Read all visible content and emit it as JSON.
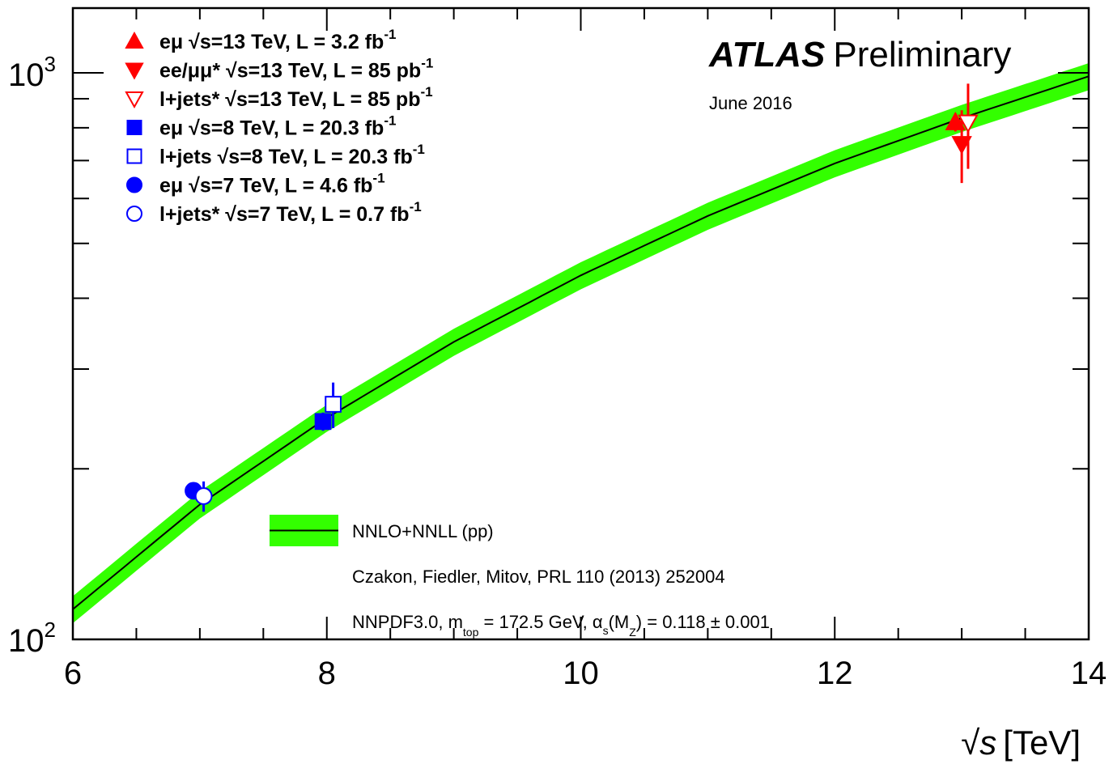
{
  "chart_data": {
    "type": "scatter",
    "title": "ATLAS",
    "subtitle": "Preliminary",
    "date_note": "June 2016",
    "xlabel_root": "√",
    "xlabel_var": "s",
    "xlabel_unit": "[TeV]",
    "ylabel": "",
    "x_range": [
      6,
      14
    ],
    "y_range": [
      100,
      1250
    ],
    "y_scale": "log",
    "x_ticks": [
      {
        "value": 6,
        "label": "6"
      },
      {
        "value": 8,
        "label": "8"
      },
      {
        "value": 10,
        "label": "10"
      },
      {
        "value": 12,
        "label": "12"
      },
      {
        "value": 14,
        "label": "14"
      }
    ],
    "y_ticks": [
      {
        "value": 100,
        "base": "10",
        "exp": "2"
      },
      {
        "value": 1000,
        "base": "10",
        "exp": "3"
      }
    ],
    "theory": {
      "name": "NNLO+NNLL (pp)",
      "reference": "Czakon, Fiedler, Mitov, PRL 110 (2013) 252004",
      "pdf_text": "NNPDF3.0, m",
      "pdf_sub": "top",
      "pdf_mid": " = 172.5 GeV, α",
      "pdf_sub2": "s",
      "pdf_mid2": "(M",
      "pdf_sub3": "Z",
      "pdf_end": ") = 0.118 ± 0.001",
      "color": "#33ff00",
      "x": [
        6,
        7,
        8,
        9,
        10,
        11,
        12,
        13,
        14
      ],
      "y": [
        113,
        173,
        246,
        335,
        439,
        559,
        692,
        832,
        986
      ],
      "rel_uncertainty": 0.055
    },
    "series": [
      {
        "name": "eμ",
        "energy": "√s=13 TeV, L = 3.2 fb",
        "lumi_exp": "-1",
        "marker": "triangle-up",
        "filled": true,
        "color": "#ff0000",
        "x": 12.95,
        "y": 818,
        "err": 30
      },
      {
        "name": "ee/μμ*",
        "energy": "√s=13 TeV, L = 85 pb",
        "lumi_exp": "-1",
        "marker": "triangle-down",
        "filled": true,
        "color": "#ff0000",
        "x": 13.0,
        "y": 749,
        "err": 110
      },
      {
        "name": "l+jets*",
        "energy": "√s=13 TeV, L = 85 pb",
        "lumi_exp": "-1",
        "marker": "triangle-down",
        "filled": false,
        "color": "#ff0000",
        "x": 13.05,
        "y": 817,
        "err": 140
      },
      {
        "name": "eμ",
        "energy": "√s=8 TeV, L = 20.3 fb",
        "lumi_exp": "-1",
        "marker": "square",
        "filled": true,
        "color": "#0000ff",
        "x": 7.97,
        "y": 242.4,
        "err": 9
      },
      {
        "name": "l+jets",
        "energy": "√s=8 TeV, L = 20.3 fb",
        "lumi_exp": "-1",
        "marker": "square",
        "filled": false,
        "color": "#0000ff",
        "x": 8.05,
        "y": 260,
        "err": 24
      },
      {
        "name": "eμ",
        "energy": "√s=7 TeV, L = 4.6 fb",
        "lumi_exp": "-1",
        "marker": "circle",
        "filled": true,
        "color": "#0000ff",
        "x": 6.95,
        "y": 182.9,
        "err": 4
      },
      {
        "name": "l+jets*",
        "energy": "√s=7 TeV, L = 0.7 fb",
        "lumi_exp": "-1",
        "marker": "circle",
        "filled": false,
        "color": "#0000ff",
        "x": 7.03,
        "y": 179,
        "err": 11
      }
    ]
  }
}
